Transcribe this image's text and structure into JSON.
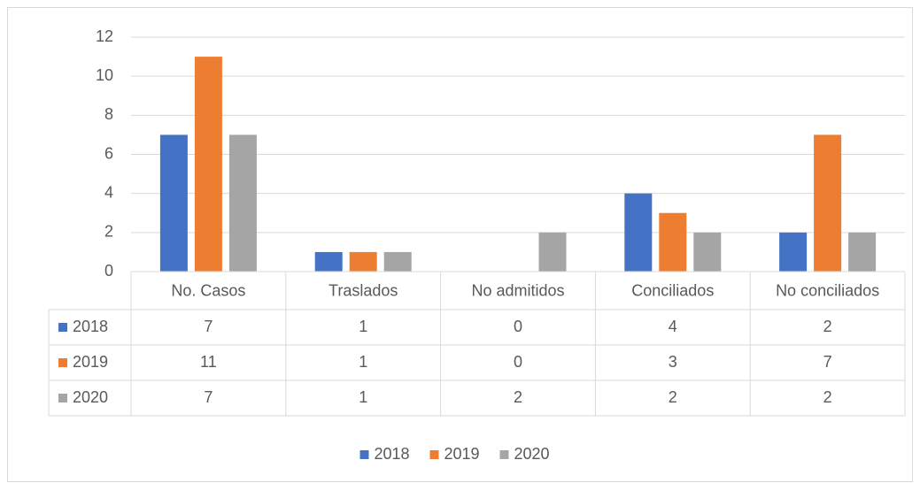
{
  "chart_data": {
    "type": "bar",
    "categories": [
      "No. Casos",
      "Traslados",
      "No admitidos",
      "Conciliados",
      "No conciliados"
    ],
    "series": [
      {
        "name": "2018",
        "color": "#4472c4",
        "values": [
          7,
          1,
          0,
          4,
          2
        ]
      },
      {
        "name": "2019",
        "color": "#ed7d31",
        "values": [
          11,
          1,
          0,
          3,
          7
        ]
      },
      {
        "name": "2020",
        "color": "#a5a5a5",
        "values": [
          7,
          1,
          2,
          2,
          2
        ]
      }
    ],
    "ylim": [
      0,
      12
    ],
    "yticks": [
      0,
      2,
      4,
      6,
      8,
      10,
      12
    ],
    "grid": true,
    "legend": "bottom",
    "data_table": true
  }
}
